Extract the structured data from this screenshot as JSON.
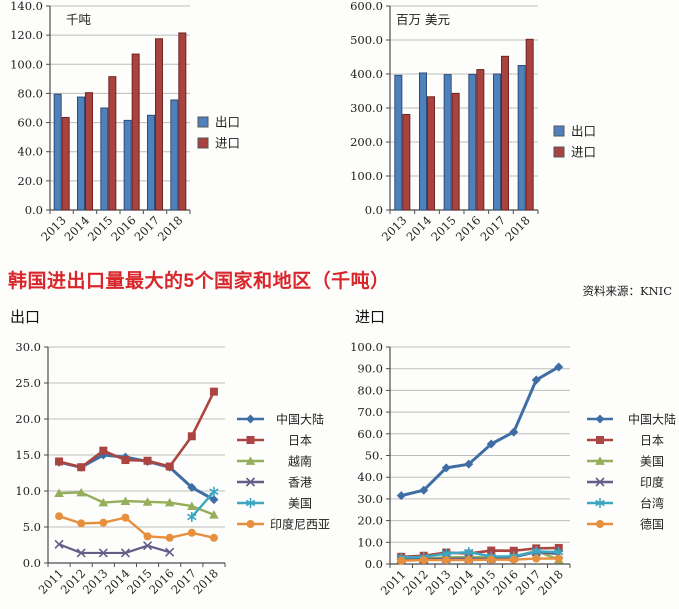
{
  "page": {
    "section_title": "韩国进出口量最大的5个国家和地区（千吨）",
    "source_label": "资料来源：KNIC",
    "export_panel_label": "出口",
    "import_panel_label": "进口"
  },
  "colors": {
    "title_red": "#d9262b",
    "export_blue": "#4f81bd",
    "import_red": "#a8433f",
    "gridline": "#bdbdbd",
    "axis": "#4d4d4d",
    "text": "#1f1f1f"
  },
  "chart_data": [
    {
      "id": "tonnage-bar",
      "type": "bar",
      "unit_label": "千吨",
      "categories": [
        "2013",
        "2014",
        "2015",
        "2016",
        "2017",
        "2018"
      ],
      "series": [
        {
          "name": "出口",
          "color": "#4f81bd",
          "border": "#2d4d77",
          "values": [
            79.5,
            77.5,
            70.0,
            61.5,
            65.0,
            75.5
          ]
        },
        {
          "name": "进口",
          "color": "#a8433f",
          "border": "#6f2523",
          "values": [
            63.5,
            80.5,
            91.5,
            107.0,
            117.5,
            121.5
          ]
        }
      ],
      "ylim": [
        0,
        140
      ],
      "ytick_values": [
        0,
        20,
        40,
        60,
        80,
        100,
        120,
        140
      ],
      "ytick_labels": [
        "0.0",
        "20.0",
        "40.0",
        "60.0",
        "80.0",
        "100.0",
        "120.0",
        "140.0"
      ],
      "grid": true,
      "legend_position": "right"
    },
    {
      "id": "usd-bar",
      "type": "bar",
      "unit_label": "百万 美元",
      "categories": [
        "2013",
        "2014",
        "2015",
        "2016",
        "2017",
        "2018"
      ],
      "series": [
        {
          "name": "出口",
          "color": "#4f81bd",
          "border": "#2d4d77",
          "values": [
            396,
            403,
            398,
            399,
            400,
            425
          ]
        },
        {
          "name": "进口",
          "color": "#a8433f",
          "border": "#6f2523",
          "values": [
            281,
            333,
            343,
            413,
            452,
            502
          ]
        }
      ],
      "ylim": [
        0,
        600
      ],
      "ytick_values": [
        0,
        100,
        200,
        300,
        400,
        500,
        600
      ],
      "ytick_labels": [
        "0.0",
        "100.0",
        "200.0",
        "300.0",
        "400.0",
        "500.0",
        "600.0"
      ],
      "grid": true,
      "legend_position": "right"
    },
    {
      "id": "export-lines",
      "type": "line",
      "title": "出口",
      "categories": [
        "2011",
        "2012",
        "2013",
        "2014",
        "2015",
        "2016",
        "2017",
        "2018"
      ],
      "series": [
        {
          "name": "中国大陆",
          "color": "#3f6ea5",
          "marker": "diamond",
          "line_width": 3,
          "values": [
            14.0,
            13.3,
            15.0,
            14.7,
            14.1,
            13.3,
            10.5,
            8.8
          ]
        },
        {
          "name": "日本",
          "color": "#ab4541",
          "marker": "square",
          "line_width": 2.6,
          "values": [
            14.1,
            13.3,
            15.6,
            14.3,
            14.2,
            13.4,
            17.6,
            23.8
          ]
        },
        {
          "name": "越南",
          "color": "#94ae59",
          "marker": "triangle",
          "line_width": 2.4,
          "values": [
            9.7,
            9.8,
            8.4,
            8.6,
            8.5,
            8.4,
            7.9,
            6.7
          ]
        },
        {
          "name": "香港",
          "color": "#615e87",
          "marker": "x",
          "line_width": 2.2,
          "values": [
            2.6,
            1.4,
            1.4,
            1.4,
            2.4,
            1.5,
            null,
            null
          ]
        },
        {
          "name": "美国",
          "color": "#3da7c2",
          "marker": "asterisk",
          "line_width": 2.4,
          "values": [
            null,
            null,
            null,
            null,
            null,
            null,
            6.4,
            9.9
          ]
        },
        {
          "name": "印度尼西亚",
          "color": "#e78f3c",
          "marker": "circle",
          "line_width": 2.4,
          "values": [
            6.5,
            5.5,
            5.6,
            6.3,
            3.7,
            3.5,
            4.2,
            3.5
          ]
        }
      ],
      "ylim": [
        0,
        30
      ],
      "ytick_values": [
        0,
        5,
        10,
        15,
        20,
        25,
        30
      ],
      "ytick_labels": [
        "0.0",
        "5.0",
        "10.0",
        "15.0",
        "20.0",
        "25.0",
        "30.0"
      ],
      "grid": true,
      "legend_position": "right"
    },
    {
      "id": "import-lines",
      "type": "line",
      "title": "进口",
      "categories": [
        "2011",
        "2012",
        "2013",
        "2014",
        "2015",
        "2016",
        "2017",
        "2018"
      ],
      "series": [
        {
          "name": "中国大陆",
          "color": "#3f6ea5",
          "marker": "diamond",
          "line_width": 3,
          "values": [
            31.5,
            34.0,
            44.3,
            46.0,
            55.3,
            60.8,
            84.8,
            90.8
          ]
        },
        {
          "name": "日本",
          "color": "#ab4541",
          "marker": "square",
          "line_width": 2.6,
          "values": [
            3.3,
            3.8,
            5.3,
            4.8,
            6.2,
            6.1,
            7.2,
            7.4
          ]
        },
        {
          "name": "美国",
          "color": "#94ae59",
          "marker": "triangle",
          "line_width": 2.4,
          "values": [
            2.5,
            2.5,
            3.0,
            3.2,
            3.0,
            3.5,
            6.0,
            2.0
          ]
        },
        {
          "name": "印度",
          "color": "#615e87",
          "marker": "x",
          "line_width": 2.2,
          "values": [
            2.0,
            2.2,
            2.5,
            2.5,
            2.5,
            3.0,
            5.5,
            4.5
          ]
        },
        {
          "name": "台湾",
          "color": "#3da7c2",
          "marker": "asterisk",
          "line_width": 2.4,
          "values": [
            3.0,
            3.2,
            4.8,
            5.5,
            3.5,
            3.5,
            5.8,
            5.5
          ]
        },
        {
          "name": "德国",
          "color": "#e78f3c",
          "marker": "circle",
          "line_width": 2.4,
          "values": [
            1.5,
            1.8,
            1.8,
            1.8,
            2.0,
            2.0,
            2.5,
            2.5
          ]
        }
      ],
      "ylim": [
        0,
        100
      ],
      "ytick_values": [
        0,
        10,
        20,
        30,
        40,
        50,
        60,
        70,
        80,
        90,
        100
      ],
      "ytick_labels": [
        "0.0",
        "10.0",
        "20.0",
        "30.0",
        "40.0",
        "50.",
        "60.0",
        "70.0",
        "80.0",
        "90.0",
        "100.0"
      ],
      "grid": true,
      "legend_position": "right"
    }
  ]
}
